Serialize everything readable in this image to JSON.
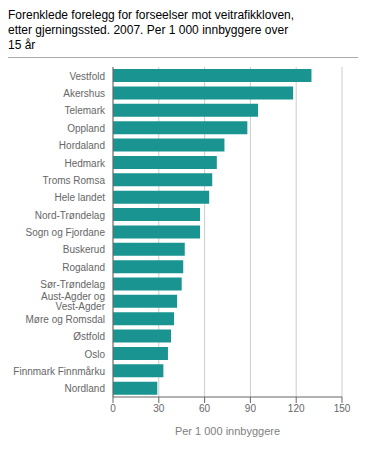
{
  "chart_data": {
    "type": "bar",
    "orientation": "horizontal",
    "title": "Forenklede forelegg for forseelser mot veitrafikkloven,\netter gjerningssted. 2007. Per 1 000 innbyggere over\n15 år",
    "xlabel": "Per 1 000 innbyggere",
    "categories": [
      "Nordland",
      "Finnmark Finnmårku",
      "Oslo",
      "Østfold",
      "Møre og Romsdal",
      "Aust-Agder og\nVest-Agder",
      "Sør-Trøndelag",
      "Rogaland",
      "Buskerud",
      "Sogn og Fjordane",
      "Nord-Trøndelag",
      "Hele landet",
      "Troms Romsa",
      "Hedmark",
      "Hordaland",
      "Oppland",
      "Telemark",
      "Akershus",
      "Vestfold"
    ],
    "values": [
      29,
      33,
      36,
      38,
      40,
      42,
      45,
      46,
      47,
      57,
      57,
      63,
      65,
      68,
      73,
      88,
      95,
      118,
      130
    ],
    "color": "#1a9490",
    "xlim": [
      0,
      150
    ],
    "xticks": [
      0,
      30,
      60,
      90,
      120,
      150
    ],
    "grid": true
  }
}
